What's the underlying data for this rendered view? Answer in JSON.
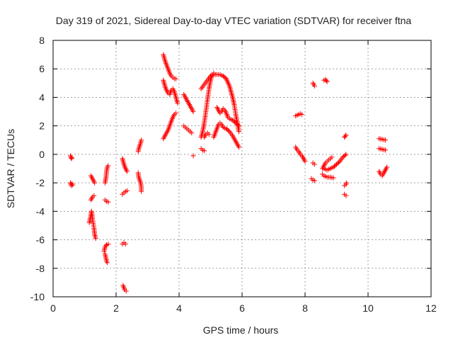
{
  "colors": {
    "series": "#ff0000",
    "grid": "#a0a0a0",
    "axis": "#000000",
    "text": "#222222"
  },
  "chart_data": {
    "type": "scatter",
    "title": "Day 319 of 2021, Sidereal Day-to-day VTEC variation (SDTVAR) for receiver ftna",
    "xlabel": "GPS time / hours",
    "ylabel": "SDTVAR / TECUs",
    "xlim": [
      0,
      12
    ],
    "ylim": [
      -10,
      8
    ],
    "xticks": [
      "0",
      "2",
      "4",
      "6",
      "8",
      "10",
      "12"
    ],
    "yticks": [
      "-10",
      "-8",
      "-6",
      "-4",
      "-2",
      "0",
      "2",
      "4",
      "6",
      "8"
    ],
    "grid": true,
    "marker": "plus",
    "series": [
      {
        "name": "SDTVAR",
        "segments": [
          [
            [
              0.55,
              -0.1
            ],
            [
              0.58,
              -0.3
            ],
            [
              0.6,
              -0.25
            ]
          ],
          [
            [
              0.55,
              -2.0
            ],
            [
              0.58,
              -2.2
            ],
            [
              0.6,
              -2.05
            ],
            [
              0.62,
              -2.15
            ]
          ],
          [
            [
              1.2,
              -1.5
            ],
            [
              1.25,
              -1.7
            ],
            [
              1.3,
              -1.9
            ],
            [
              1.32,
              -2.0
            ]
          ],
          [
            [
              1.2,
              -3.2
            ],
            [
              1.25,
              -3.0
            ],
            [
              1.3,
              -2.9
            ]
          ],
          [
            [
              1.15,
              -4.8
            ],
            [
              1.2,
              -4.3
            ],
            [
              1.22,
              -4.0
            ],
            [
              1.25,
              -4.5
            ],
            [
              1.3,
              -5.2
            ],
            [
              1.32,
              -5.6
            ],
            [
              1.35,
              -5.9
            ]
          ],
          [
            [
              1.65,
              -2.0
            ],
            [
              1.68,
              -1.6
            ],
            [
              1.7,
              -1.2
            ],
            [
              1.72,
              -0.9
            ],
            [
              1.75,
              -0.8
            ]
          ],
          [
            [
              1.65,
              -3.2
            ],
            [
              1.7,
              -3.3
            ],
            [
              1.75,
              -3.35
            ]
          ],
          [
            [
              1.62,
              -6.8
            ],
            [
              1.65,
              -6.5
            ],
            [
              1.68,
              -6.4
            ],
            [
              1.7,
              -6.35
            ],
            [
              1.75,
              -6.3
            ]
          ],
          [
            [
              1.65,
              -7.0
            ],
            [
              1.68,
              -7.3
            ],
            [
              1.7,
              -7.5
            ],
            [
              1.72,
              -7.6
            ]
          ],
          [
            [
              2.2,
              -2.8
            ],
            [
              2.25,
              -2.7
            ],
            [
              2.3,
              -2.6
            ],
            [
              2.35,
              -2.55
            ]
          ],
          [
            [
              2.2,
              -0.3
            ],
            [
              2.25,
              -0.7
            ],
            [
              2.3,
              -1.0
            ],
            [
              2.35,
              -1.2
            ]
          ],
          [
            [
              2.2,
              -6.3
            ],
            [
              2.25,
              -6.2
            ],
            [
              2.3,
              -6.3
            ]
          ],
          [
            [
              2.22,
              -9.2
            ],
            [
              2.27,
              -9.5
            ],
            [
              2.32,
              -9.6
            ]
          ],
          [
            [
              2.7,
              -1.3
            ],
            [
              2.72,
              -1.6
            ],
            [
              2.75,
              -1.8
            ],
            [
              2.78,
              -2.0
            ],
            [
              2.8,
              -2.3
            ],
            [
              2.8,
              -2.6
            ]
          ],
          [
            [
              2.7,
              0.2
            ],
            [
              2.72,
              0.4
            ],
            [
              2.75,
              0.6
            ],
            [
              2.78,
              0.8
            ],
            [
              2.8,
              1.0
            ]
          ],
          [
            [
              3.5,
              7.0
            ],
            [
              3.55,
              6.6
            ],
            [
              3.6,
              6.3
            ],
            [
              3.65,
              6.0
            ],
            [
              3.7,
              5.7
            ],
            [
              3.75,
              5.5
            ],
            [
              3.8,
              5.4
            ],
            [
              3.85,
              5.3
            ],
            [
              3.9,
              5.3
            ]
          ],
          [
            [
              3.5,
              5.2
            ],
            [
              3.55,
              4.8
            ],
            [
              3.6,
              4.5
            ],
            [
              3.65,
              4.3
            ],
            [
              3.7,
              4.2
            ],
            [
              3.75,
              4.5
            ],
            [
              3.8,
              4.6
            ],
            [
              3.85,
              4.4
            ],
            [
              3.9,
              4.0
            ],
            [
              3.95,
              3.6
            ]
          ],
          [
            [
              3.5,
              1.1
            ],
            [
              3.55,
              1.3
            ],
            [
              3.6,
              1.5
            ],
            [
              3.65,
              1.7
            ],
            [
              3.7,
              2.0
            ],
            [
              3.75,
              2.3
            ],
            [
              3.8,
              2.6
            ],
            [
              3.85,
              2.8
            ],
            [
              3.9,
              2.9
            ]
          ],
          [
            [
              4.15,
              4.2
            ],
            [
              4.2,
              4.0
            ],
            [
              4.25,
              3.8
            ],
            [
              4.3,
              3.6
            ],
            [
              4.35,
              3.4
            ],
            [
              4.4,
              3.2
            ],
            [
              4.45,
              3.0
            ]
          ],
          [
            [
              4.15,
              2.0
            ],
            [
              4.2,
              1.9
            ],
            [
              4.25,
              1.8
            ],
            [
              4.3,
              1.7
            ],
            [
              4.35,
              1.6
            ],
            [
              4.4,
              1.5
            ]
          ],
          [
            [
              4.45,
              -0.1
            ]
          ],
          [
            [
              4.7,
              4.6
            ],
            [
              4.8,
              4.9
            ],
            [
              4.9,
              5.2
            ],
            [
              5.0,
              5.5
            ],
            [
              5.1,
              5.6
            ],
            [
              5.2,
              5.6
            ],
            [
              5.3,
              5.6
            ],
            [
              5.4,
              5.5
            ],
            [
              5.5,
              5.3
            ],
            [
              5.6,
              4.8
            ],
            [
              5.7,
              4.0
            ],
            [
              5.75,
              3.5
            ],
            [
              5.8,
              2.8
            ],
            [
              5.85,
              2.2
            ],
            [
              5.9,
              1.6
            ]
          ],
          [
            [
              4.7,
              1.2
            ],
            [
              4.75,
              1.6
            ],
            [
              4.8,
              2.2
            ],
            [
              4.85,
              3.0
            ],
            [
              4.9,
              3.8
            ],
            [
              4.95,
              4.6
            ],
            [
              5.0,
              5.2
            ],
            [
              5.05,
              5.6
            ],
            [
              5.1,
              5.7
            ]
          ],
          [
            [
              4.7,
              0.4
            ],
            [
              4.75,
              0.3
            ],
            [
              4.8,
              0.25
            ]
          ],
          [
            [
              4.8,
              1.2
            ],
            [
              4.85,
              1.4
            ],
            [
              4.9,
              1.5
            ],
            [
              4.95,
              1.4
            ]
          ],
          [
            [
              5.1,
              1.2
            ],
            [
              5.15,
              1.5
            ],
            [
              5.2,
              1.8
            ],
            [
              5.25,
              2.1
            ],
            [
              5.3,
              2.2
            ],
            [
              5.35,
              2.1
            ],
            [
              5.4,
              1.9
            ],
            [
              5.5,
              1.8
            ],
            [
              5.6,
              1.6
            ],
            [
              5.7,
              1.3
            ],
            [
              5.8,
              0.9
            ],
            [
              5.9,
              0.5
            ]
          ],
          [
            [
              5.2,
              3.3
            ],
            [
              5.25,
              3.1
            ],
            [
              5.3,
              2.9
            ],
            [
              5.35,
              3.0
            ],
            [
              5.4,
              3.2
            ],
            [
              5.45,
              3.1
            ],
            [
              5.5,
              2.9
            ],
            [
              5.55,
              2.6
            ],
            [
              5.6,
              2.5
            ],
            [
              5.7,
              2.4
            ],
            [
              5.8,
              2.2
            ],
            [
              5.9,
              2.0
            ]
          ],
          [
            [
              7.7,
              2.7
            ],
            [
              7.75,
              2.75
            ],
            [
              7.8,
              2.8
            ],
            [
              7.85,
              2.85
            ],
            [
              7.9,
              2.8
            ]
          ],
          [
            [
              7.7,
              0.5
            ],
            [
              7.75,
              0.3
            ],
            [
              7.8,
              0.2
            ],
            [
              7.85,
              0.0
            ],
            [
              7.9,
              -0.1
            ],
            [
              7.95,
              -0.3
            ],
            [
              8.0,
              -0.5
            ]
          ],
          [
            [
              8.25,
              5.0
            ],
            [
              8.3,
              4.8
            ]
          ],
          [
            [
              8.25,
              -0.6
            ],
            [
              8.3,
              -0.7
            ]
          ],
          [
            [
              8.2,
              -1.7
            ],
            [
              8.25,
              -1.8
            ],
            [
              8.3,
              -1.85
            ]
          ],
          [
            [
              8.6,
              5.2
            ],
            [
              8.65,
              5.25
            ],
            [
              8.7,
              5.1
            ]
          ],
          [
            [
              8.55,
              -1.0
            ],
            [
              8.6,
              -0.8
            ],
            [
              8.65,
              -0.6
            ],
            [
              8.7,
              -0.5
            ],
            [
              8.75,
              -0.4
            ],
            [
              8.8,
              -0.3
            ],
            [
              8.85,
              -0.2
            ]
          ],
          [
            [
              8.55,
              -1.4
            ],
            [
              8.6,
              -1.5
            ],
            [
              8.65,
              -1.55
            ],
            [
              8.7,
              -1.6
            ],
            [
              8.8,
              -1.6
            ],
            [
              8.9,
              -1.65
            ]
          ],
          [
            [
              8.6,
              -1.0
            ],
            [
              8.7,
              -1.1
            ],
            [
              8.8,
              -1.0
            ],
            [
              8.9,
              -0.9
            ],
            [
              9.0,
              -0.7
            ],
            [
              9.1,
              -0.5
            ],
            [
              9.2,
              -0.2
            ],
            [
              9.3,
              0.0
            ]
          ],
          [
            [
              9.25,
              1.2
            ],
            [
              9.3,
              1.35
            ]
          ],
          [
            [
              9.25,
              -2.2
            ],
            [
              9.3,
              -2.1
            ],
            [
              9.32,
              -2.0
            ]
          ],
          [
            [
              9.25,
              -2.8
            ],
            [
              9.3,
              -2.9
            ]
          ],
          [
            [
              10.35,
              1.1
            ],
            [
              10.45,
              1.05
            ],
            [
              10.55,
              1.0
            ]
          ],
          [
            [
              10.35,
              0.4
            ],
            [
              10.45,
              0.35
            ],
            [
              10.55,
              0.3
            ]
          ],
          [
            [
              10.35,
              -1.2
            ],
            [
              10.4,
              -1.4
            ],
            [
              10.45,
              -1.5
            ],
            [
              10.5,
              -1.3
            ],
            [
              10.55,
              -1.1
            ],
            [
              10.6,
              -0.9
            ]
          ]
        ]
      }
    ]
  }
}
